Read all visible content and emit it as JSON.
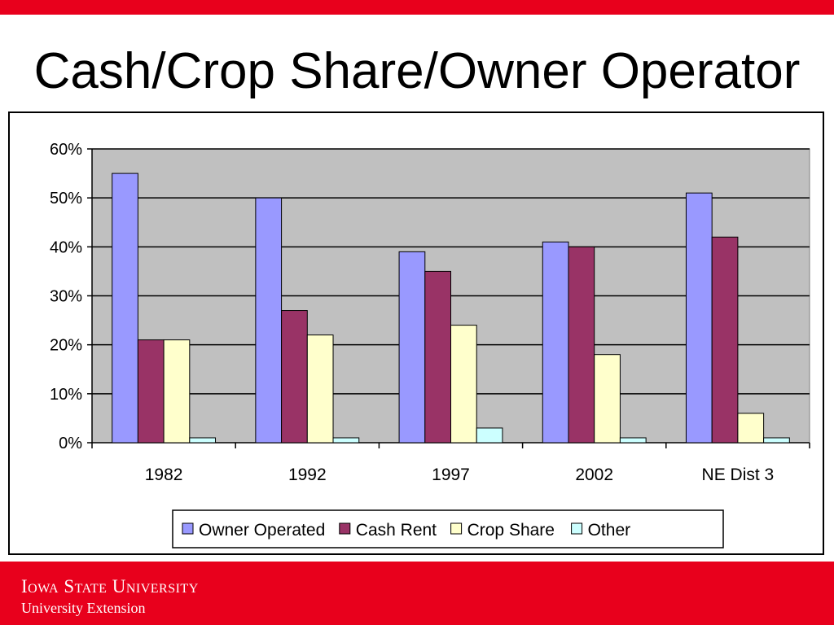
{
  "slide": {
    "title": "Cash/Crop Share/Owner Operator"
  },
  "footer": {
    "university": "Iowa State University",
    "extension": "University Extension"
  },
  "colors": {
    "brand_red": "#e8001c",
    "plot_background": "#c0c0c0",
    "series": [
      "#9999ff",
      "#993366",
      "#ffffcc",
      "#ccffff"
    ]
  },
  "chart_data": {
    "type": "bar",
    "categories": [
      "1982",
      "1992",
      "1997",
      "2002",
      "NE Dist 3"
    ],
    "series": [
      {
        "name": "Owner Operated",
        "values": [
          55,
          50,
          39,
          41,
          51
        ]
      },
      {
        "name": "Cash Rent",
        "values": [
          21,
          27,
          35,
          40,
          42
        ]
      },
      {
        "name": "Crop Share",
        "values": [
          21,
          22,
          24,
          18,
          6
        ]
      },
      {
        "name": "Other",
        "values": [
          1,
          1,
          3,
          1,
          1
        ]
      }
    ],
    "yticks": [
      "0%",
      "10%",
      "20%",
      "30%",
      "40%",
      "50%",
      "60%"
    ],
    "ylim": [
      0,
      60
    ],
    "grid": true,
    "legend_position": "bottom"
  }
}
